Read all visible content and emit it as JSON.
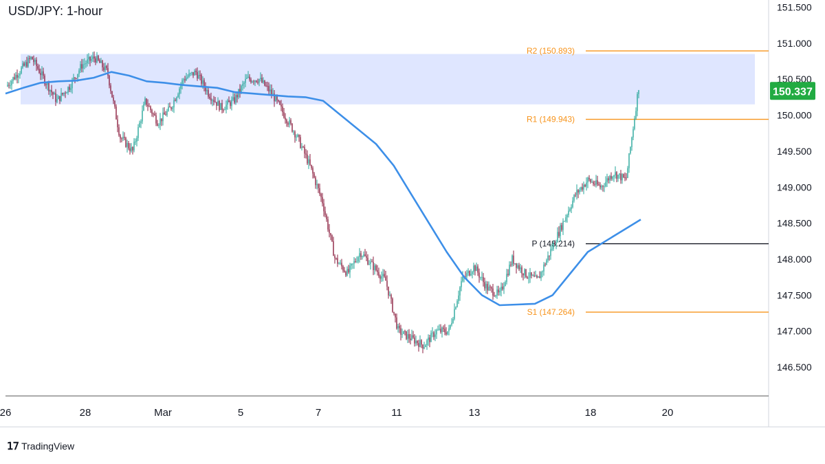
{
  "chart_data": {
    "type": "candlestick",
    "title": "USD/JPY: 1-hour",
    "ylim": [
      146.1,
      151.6
    ],
    "y_ticks": [
      "151.500",
      "151.000",
      "150.500",
      "150.000",
      "149.500",
      "149.000",
      "148.500",
      "148.000",
      "147.500",
      "147.000",
      "146.500"
    ],
    "x_ticks": [
      "26",
      "28",
      "Mar",
      "5",
      "7",
      "11",
      "13",
      "18",
      "20"
    ],
    "last_price": "150.337",
    "grid": false,
    "zone": {
      "low": 150.15,
      "high": 150.85
    },
    "levels": [
      {
        "name": "R2",
        "value": 150.893,
        "label": "R2 (150.893)",
        "color": "#f7931a"
      },
      {
        "name": "R1",
        "value": 149.943,
        "label": "R1 (149.943)",
        "color": "#f7931a"
      },
      {
        "name": "P",
        "value": 148.214,
        "label": "P (148.214)",
        "color": "#131722"
      },
      {
        "name": "S1",
        "value": 147.264,
        "label": "S1 (147.264)",
        "color": "#f7931a"
      }
    ],
    "price_path": [
      150.4,
      150.6,
      150.8,
      150.5,
      150.2,
      150.4,
      150.7,
      150.8,
      150.6,
      149.7,
      149.5,
      150.2,
      149.9,
      150.1,
      150.5,
      150.6,
      150.3,
      150.1,
      150.2,
      150.5,
      150.5,
      150.3,
      150.0,
      149.7,
      149.3,
      148.8,
      148.0,
      147.8,
      148.1,
      147.9,
      147.7,
      147.0,
      146.9,
      146.8,
      147.0,
      147.0,
      147.7,
      147.9,
      147.6,
      147.5,
      148.0,
      147.8,
      147.7,
      148.1,
      148.5,
      148.9,
      149.1,
      149.0,
      149.2,
      149.1,
      150.4
    ],
    "moving_average": [
      150.3,
      150.38,
      150.45,
      150.47,
      150.48,
      150.52,
      150.6,
      150.55,
      150.47,
      150.45,
      150.42,
      150.4,
      150.38,
      150.32,
      150.3,
      150.28,
      150.26,
      150.25,
      150.2,
      150.0,
      149.8,
      149.6,
      149.3,
      148.9,
      148.5,
      148.1,
      147.75,
      147.5,
      147.36,
      147.37,
      147.38,
      147.5,
      147.8,
      148.1,
      148.25,
      148.4,
      148.55
    ]
  },
  "branding": {
    "name": "TradingView"
  },
  "colors": {
    "bull": "#26a69a",
    "bear": "#8b1e3f",
    "ma": "#3d8fe8",
    "zone": "#dfe6ff",
    "price_badge": "#22ab42",
    "axis": "#d1d4dc"
  }
}
